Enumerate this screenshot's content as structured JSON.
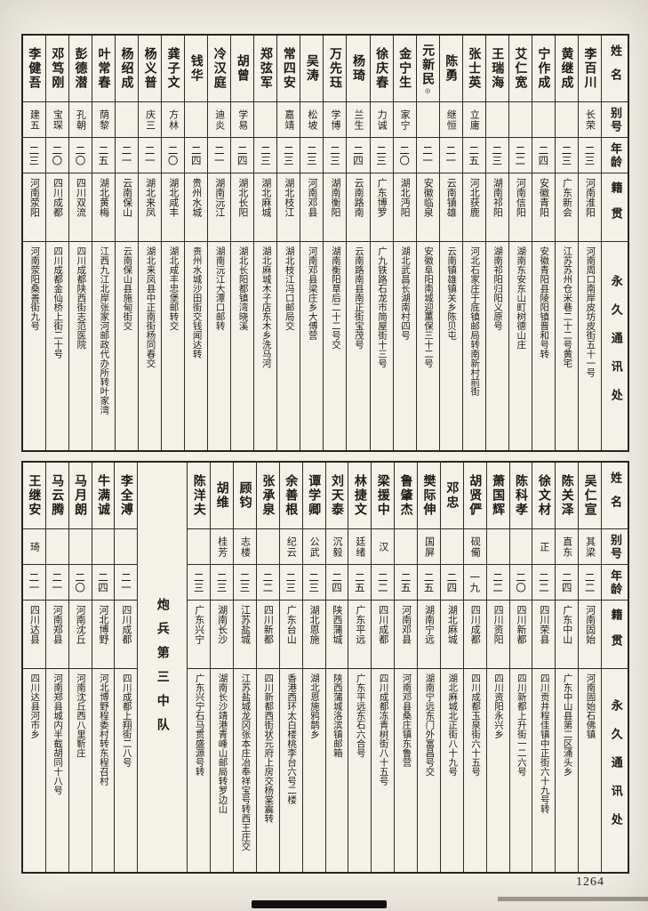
{
  "page": {
    "number": "1264"
  },
  "header_labels": {
    "name": "姓名",
    "alias": "别号",
    "age": "年龄",
    "native": "籍贯",
    "address": "永久通讯处"
  },
  "top_table": {
    "entries": [
      {
        "name": "李百川",
        "alias": "长荣",
        "age": "二三",
        "native": "河南淮阳",
        "address": "河南周口南岸皮坊皮街五十一号"
      },
      {
        "name": "黄继成",
        "alias": "",
        "age": "二三",
        "native": "广东新会",
        "address": "江苏苏州仓米巷二十二号黄宅"
      },
      {
        "name": "宁作成",
        "alias": "",
        "age": "二四",
        "native": "安徽青阳",
        "address": "安徽青阳县陵阳镇晋和号转"
      },
      {
        "name": "艾仁宽",
        "alias": "",
        "age": "二二",
        "native": "河南信阳",
        "address": "湖南东安东山町树德山庄"
      },
      {
        "name": "王瑞海",
        "alias": "",
        "age": "二三",
        "native": "湖南祁阳",
        "address": "湖南祁阳归阳义原号"
      },
      {
        "name": "张士英",
        "alias": "立庸",
        "age": "二五",
        "native": "河北获鹿",
        "address": "河北石家庄于底镇邮局转南新村前街"
      },
      {
        "name": "陈勇",
        "alias": "继恒",
        "age": "二一",
        "native": "云南镇雄",
        "address": "云南镇雄镇关乡陈贝屯"
      },
      {
        "name": "元新民",
        "alias": "",
        "age": "二一",
        "native": "安徽临泉",
        "address": "安徽阜阳南城迎薰保三十二号",
        "note": "◎"
      },
      {
        "name": "金宁生",
        "alias": "家宁",
        "age": "二〇",
        "native": "湖北沔阳",
        "address": "湖北武昌长湖南村四号"
      },
      {
        "name": "徐庆春",
        "alias": "力诚",
        "age": "二三",
        "native": "广东博罗",
        "address": "广九铁路石龙市简屋街十三号"
      },
      {
        "name": "杨琦",
        "alias": "兰生",
        "age": "二四",
        "native": "云南路南",
        "address": "云南路南县南正街宝茂号"
      },
      {
        "name": "万先珏",
        "alias": "学博",
        "age": "二三",
        "native": "湖南衡阳",
        "address": "湖南衡阳草后二十二号交"
      },
      {
        "name": "吴涛",
        "alias": "松坡",
        "age": "二三",
        "native": "河南邓县",
        "address": "河南邓县梁庄乡大傅营"
      },
      {
        "name": "常四安",
        "alias": "嘉靖",
        "age": "二三",
        "native": "湖北枝江",
        "address": "湖北枝江冯口邮局交"
      },
      {
        "name": "郑弦军",
        "alias": "",
        "age": "二三",
        "native": "湖北麻城",
        "address": "湖北麻城木子店东木乡洗马河"
      },
      {
        "name": "胡曾",
        "alias": "学易",
        "age": "二四",
        "native": "湖北长阳",
        "address": "湖北长阳都镇湾晓溪"
      },
      {
        "name": "冷汉庭",
        "alias": "迪炎",
        "age": "二一",
        "native": "湖南沅江",
        "address": "湖南沅江大潭口邮转"
      },
      {
        "name": "钱华",
        "alias": "",
        "age": "二四",
        "native": "贵州水城",
        "address": "贵州水城沙田街交钱闻达转"
      },
      {
        "name": "龚子文",
        "alias": "方林",
        "age": "二〇",
        "native": "湖北咸丰",
        "address": "湖北咸丰忠堡邮转交"
      },
      {
        "name": "杨义普",
        "alias": "庆三",
        "age": "二一",
        "native": "湖北来凤",
        "address": "湖北来凤县中正南街杨同春交"
      },
      {
        "name": "杨绍成",
        "alias": "",
        "age": "二一",
        "native": "云南保山",
        "address": "云南保山县施甸街交"
      },
      {
        "name": "叶常春",
        "alias": "荫黎",
        "age": "二五",
        "native": "湖北黄梅",
        "address": "江西九江北岸张家河邮政代办所转叶家湾"
      },
      {
        "name": "彭德潜",
        "alias": "孔朝",
        "age": "二〇",
        "native": "四川双流",
        "address": "四川成都陕西街志范医院"
      },
      {
        "name": "邓笃刚",
        "alias": "宝琛",
        "age": "二〇",
        "native": "四川成都",
        "address": "四川成都金仙桥上街二十号"
      },
      {
        "name": "李健吾",
        "alias": "建五",
        "age": "二三",
        "native": "河南荥阳",
        "address": "河南荥阳桑善街九号"
      }
    ]
  },
  "bottom_table": {
    "section_label": "炮兵第三中队",
    "entries_right": [
      {
        "name": "吴仁宣",
        "alias": "其梁",
        "age": "二二",
        "native": "河南固始",
        "address": "河南固始石佛镇"
      },
      {
        "name": "陈关泽",
        "alias": "直东",
        "age": "二四",
        "native": "广东中山",
        "address": "广东中山县第二区涌头乡"
      },
      {
        "name": "徐文材",
        "alias": "正",
        "age": "二二",
        "native": "四川荣县",
        "address": "四川贡井程佳镇中正街六十九号转"
      },
      {
        "name": "陈科孝",
        "alias": "",
        "age": "二〇",
        "native": "四川新都",
        "address": "四川新都上升街一二六号"
      },
      {
        "name": "萧国辉",
        "alias": "",
        "age": "二二",
        "native": "四川资阳",
        "address": "四川资阳永兴乡"
      },
      {
        "name": "胡贤俨",
        "alias": "砚僃",
        "age": "一九",
        "native": "四川成都",
        "address": "四川成都玉泉街六十五号"
      },
      {
        "name": "邓忠",
        "alias": "",
        "age": "二四",
        "native": "湖北麻城",
        "address": "湖北麻城北正街八十九号"
      },
      {
        "name": "樊际伸",
        "alias": "国屏",
        "age": "二五",
        "native": "湖南宁远",
        "address": "湖南宁远东门外富昌号交"
      },
      {
        "name": "鲁肇杰",
        "alias": "",
        "age": "二五",
        "native": "河南邓县",
        "address": "河南邓县桑庄镇东鲁营"
      },
      {
        "name": "梁援中",
        "alias": "汉",
        "age": "二二",
        "native": "四川成都",
        "address": "四川成都冻青树街八十五号"
      },
      {
        "name": "林捷文",
        "alias": "廷绪",
        "age": "二五",
        "native": "广东平远",
        "address": "广东平远东石六合号"
      },
      {
        "name": "刘天泰",
        "alias": "沉毅",
        "age": "二四",
        "native": "陕西蒲城",
        "address": "陕西蒲城洛滨镇邮箱"
      },
      {
        "name": "谭学卿",
        "alias": "公武",
        "age": "二三",
        "native": "湖北恩施",
        "address": "湖北恩施鸦鹊乡"
      },
      {
        "name": "余善根",
        "alias": "纪云",
        "age": "二三",
        "native": "广东台山",
        "address": "香港西环太白楼桃李台六号二楼"
      },
      {
        "name": "张承泉",
        "alias": "",
        "age": "二二",
        "native": "四川新都",
        "address": "四川新都西街状元府上房交杨棠震转"
      },
      {
        "name": "顾钧",
        "alias": "志楼",
        "age": "二三",
        "native": "江苏盐城",
        "address": "江苏盐城龙冈张本庄冶奉祥宝号转西王庄交"
      },
      {
        "name": "胡维",
        "alias": "桂芳",
        "age": "二三",
        "native": "湖南长沙",
        "address": "湖南长沙靖港青峰山邮局转罗边山"
      },
      {
        "name": "陈洋夫",
        "alias": "",
        "age": "二三",
        "native": "广东兴宁",
        "address": "广东兴宁石马贯盛源号转"
      }
    ],
    "entries_left": [
      {
        "name": "李全溥",
        "alias": "",
        "age": "二一",
        "native": "四川成都",
        "address": "四川成都上翔街二八号"
      },
      {
        "name": "牛满诚",
        "alias": "",
        "age": "二四",
        "native": "河北博野",
        "address": "河北博野程委村转东程召村"
      },
      {
        "name": "马月朗",
        "alias": "",
        "age": "二〇",
        "native": "河南沈丘",
        "address": "河南沈丘西八里靳庄"
      },
      {
        "name": "马云腾",
        "alias": "",
        "age": "二一",
        "native": "河南郑县",
        "address": "河南郑县城内半截胡同十八号"
      },
      {
        "name": "王继安",
        "alias": "琦",
        "age": "二一",
        "native": "四川达县",
        "address": "四川达县河市乡"
      }
    ]
  }
}
